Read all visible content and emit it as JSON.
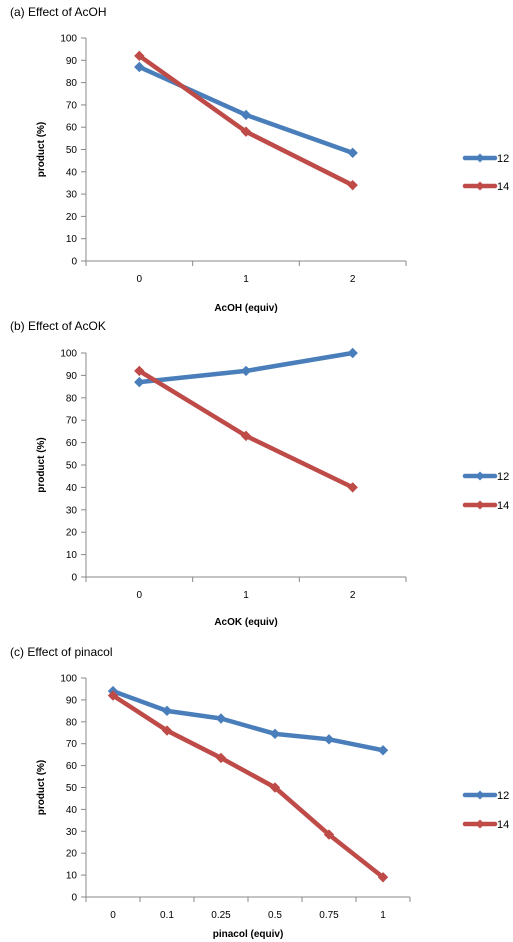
{
  "chart_data": [
    {
      "type": "line",
      "title": "(a) Effect of AcOH",
      "xlabel": "AcOH (equiv)",
      "ylabel": "product (%)",
      "categories": [
        "0",
        "1",
        "2"
      ],
      "ylim": [
        0,
        100
      ],
      "yticks": [
        0,
        10,
        20,
        30,
        40,
        50,
        60,
        70,
        80,
        90,
        100
      ],
      "grid": false,
      "legend": "right",
      "series": [
        {
          "name": "12",
          "color": "#4a7ebb",
          "values": [
            87,
            65.5,
            48.5
          ]
        },
        {
          "name": "14",
          "color": "#be4b48",
          "values": [
            92,
            58,
            34
          ]
        }
      ]
    },
    {
      "type": "line",
      "title": "(b) Effect of AcOK",
      "xlabel": "AcOK (equiv)",
      "ylabel": "product (%)",
      "categories": [
        "0",
        "1",
        "2"
      ],
      "ylim": [
        0,
        100
      ],
      "yticks": [
        0,
        10,
        20,
        30,
        40,
        50,
        60,
        70,
        80,
        90,
        100
      ],
      "grid": false,
      "legend": "right",
      "series": [
        {
          "name": "12",
          "color": "#4a7ebb",
          "values": [
            87,
            92,
            100
          ]
        },
        {
          "name": "14",
          "color": "#be4b48",
          "values": [
            92,
            63,
            40
          ]
        }
      ]
    },
    {
      "type": "line",
      "title": "(c) Effect of pinacol",
      "xlabel": "pinacol (equiv)",
      "ylabel": "product (%)",
      "categories": [
        "0",
        "0.1",
        "0.25",
        "0.5",
        "0.75",
        "1"
      ],
      "ylim": [
        0,
        100
      ],
      "yticks": [
        0,
        10,
        20,
        30,
        40,
        50,
        60,
        70,
        80,
        90,
        100
      ],
      "grid": false,
      "legend": "right",
      "series": [
        {
          "name": "12",
          "color": "#4a7ebb",
          "values": [
            94,
            85,
            81.5,
            74.5,
            72,
            67
          ]
        },
        {
          "name": "14",
          "color": "#be4b48",
          "values": [
            92,
            76,
            63.5,
            50,
            28.5,
            9
          ]
        }
      ]
    }
  ]
}
